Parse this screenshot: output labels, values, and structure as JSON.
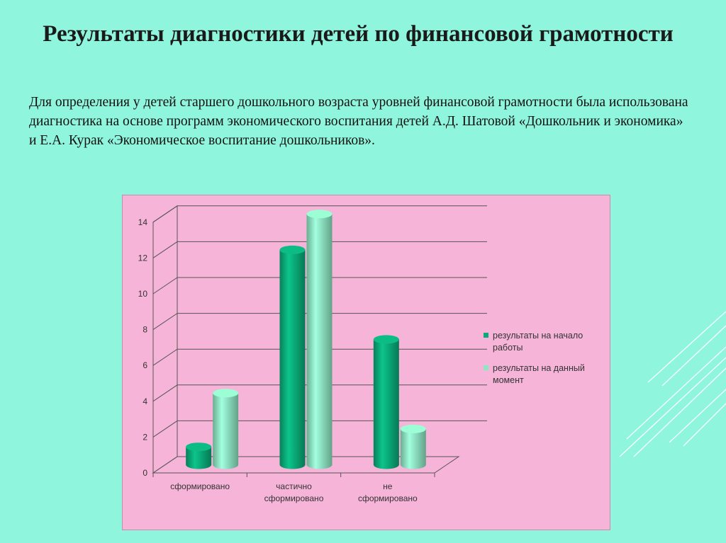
{
  "slide": {
    "title": "Результаты диагностики детей по финансовой грамотности",
    "intro": "Для определения у детей старшего дошкольного возраста уровней финансовой грамотности была использована диагностика на основе программ экономического воспитания детей А.Д. Шатовой «Дошкольник и экономика» и Е.А. Курак «Экономическое воспитание дошкольников»."
  },
  "colors": {
    "background": "#8ff5dd",
    "chart_bg": "#f6b5d8",
    "series_start": "#0aab78",
    "series_now": "#8de7c2"
  },
  "chart_data": {
    "type": "bar",
    "style": "3d-cylinder",
    "categories": [
      "сформировано",
      "частично сформировано",
      "не сформировано"
    ],
    "category_lines": [
      [
        "сформировано"
      ],
      [
        "частично",
        "сформировано"
      ],
      [
        "не",
        "сформировано"
      ]
    ],
    "series": [
      {
        "name": "результаты на начало работы",
        "legend_lines": [
          "результаты на начало",
          "работы"
        ],
        "values": [
          1,
          12,
          7
        ]
      },
      {
        "name": "результаты на данный момент",
        "legend_lines": [
          "результаты на данный",
          "момент"
        ],
        "values": [
          4,
          14,
          2
        ]
      }
    ],
    "yticks": [
      0,
      2,
      4,
      6,
      8,
      10,
      12,
      14
    ],
    "ylim": [
      0,
      14
    ],
    "grid": true,
    "legend_position": "right"
  }
}
